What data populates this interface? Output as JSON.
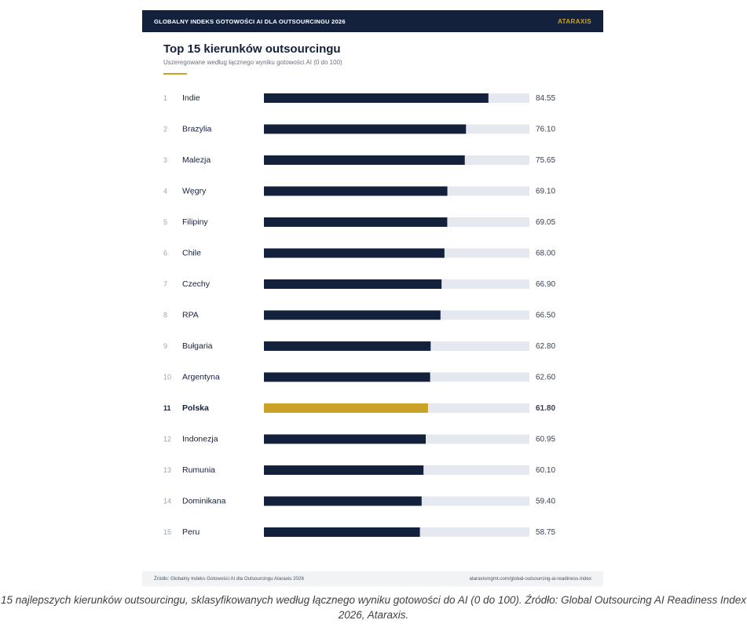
{
  "header": {
    "title": "GLOBALNY INDEKS GOTOWOŚCI AI DLA OUTSOURCINGU 2026",
    "brand": "ATARAXIS"
  },
  "colors": {
    "navy": "#14213d",
    "gold": "#c9a227",
    "track": "#e5e8ee"
  },
  "chart_data": {
    "type": "bar",
    "orientation": "horizontal",
    "title": "Top 15 kierunków outsourcingu",
    "subtitle": "Uszeregowane według łącznego wyniku gotowości AI (0 do 100)",
    "xlim": [
      0,
      100
    ],
    "highlight": "Polska",
    "ranks": [
      1,
      2,
      3,
      4,
      5,
      6,
      7,
      8,
      9,
      10,
      11,
      12,
      13,
      14,
      15
    ],
    "categories": [
      "Indie",
      "Brazylia",
      "Malezja",
      "Węgry",
      "Filipiny",
      "Chile",
      "Czechy",
      "RPA",
      "Bułgaria",
      "Argentyna",
      "Polska",
      "Indonezja",
      "Rumunia",
      "Dominikana",
      "Peru"
    ],
    "values": [
      84.55,
      76.1,
      75.65,
      69.1,
      69.05,
      68.0,
      66.9,
      66.5,
      62.8,
      62.6,
      61.8,
      60.95,
      60.1,
      59.4,
      58.75
    ],
    "value_labels": [
      "84.55",
      "76.10",
      "75.65",
      "69.10",
      "69.05",
      "68.00",
      "66.90",
      "66.50",
      "62.80",
      "62.60",
      "61.80",
      "60.95",
      "60.10",
      "59.40",
      "58.75"
    ]
  },
  "footer": {
    "source": "Źródło: Globalny Indeks Gotowości AI dla Outsourcingu Ataraxis 2026",
    "url": "ataraxismgmt.com/global-outsourcing-ai-readiness-index"
  },
  "caption": "15 najlepszych kierunków outsourcingu, sklasyfikowanych według łącznego wyniku gotowości do AI (0 do 100). Źródło: Global Outsourcing AI Readiness Index 2026, Ataraxis."
}
